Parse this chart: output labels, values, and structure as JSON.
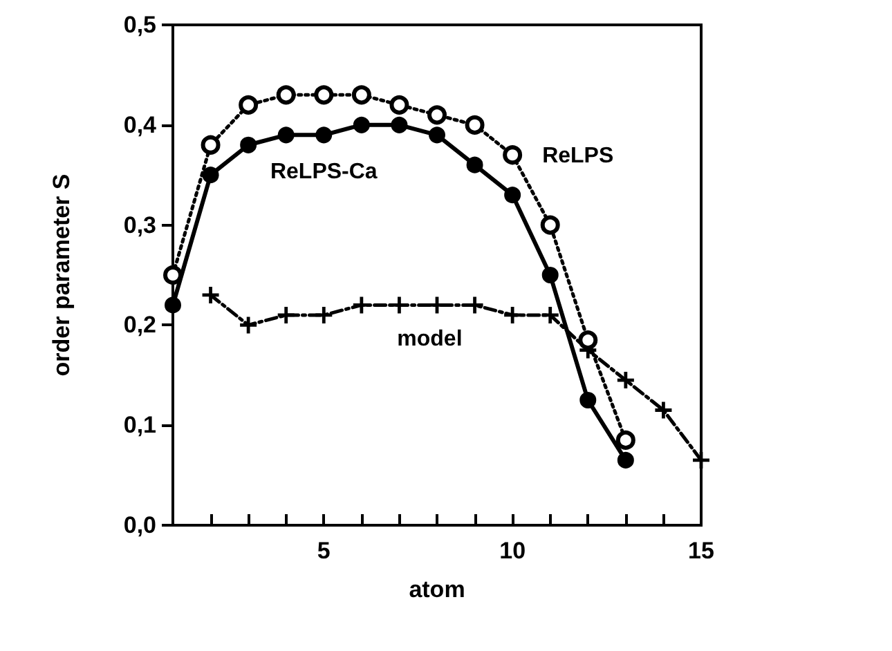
{
  "chart_data": {
    "type": "line",
    "xlabel": "atom",
    "ylabel": "order parameter S",
    "xlim": [
      1,
      15
    ],
    "ylim": [
      0,
      0.5
    ],
    "xticks": [
      {
        "value": 2,
        "label": null
      },
      {
        "value": 3,
        "label": null
      },
      {
        "value": 4,
        "label": null
      },
      5,
      {
        "value": 6,
        "label": null
      },
      {
        "value": 7,
        "label": null
      },
      {
        "value": 8,
        "label": null
      },
      {
        "value": 9,
        "label": null
      },
      10,
      {
        "value": 11,
        "label": null
      },
      {
        "value": 12,
        "label": null
      },
      {
        "value": 13,
        "label": null
      },
      {
        "value": 14,
        "label": null
      },
      15
    ],
    "yticks": [
      {
        "value": 0,
        "label": "0,0"
      },
      {
        "value": 0.1,
        "label": "0,1"
      },
      {
        "value": 0.2,
        "label": "0,2"
      },
      {
        "value": 0.3,
        "label": "0,3"
      },
      {
        "value": 0.4,
        "label": "0,4"
      },
      {
        "value": 0.5,
        "label": "0,5"
      }
    ],
    "grid": false,
    "legend": false,
    "series": [
      {
        "name": "ReLPS",
        "color": "#000000",
        "marker": "circle",
        "line_style": "dotted",
        "x": [
          1,
          2,
          3,
          4,
          5,
          6,
          7,
          8,
          9,
          10,
          11,
          12,
          13
        ],
        "values": [
          0.25,
          0.38,
          0.42,
          0.43,
          0.43,
          0.43,
          0.42,
          0.41,
          0.4,
          0.37,
          0.3,
          0.185,
          0.085
        ]
      },
      {
        "name": "ReLPS-Ca",
        "color": "#000000",
        "marker": "circle",
        "line_style": "solid",
        "x": [
          1,
          2,
          3,
          4,
          5,
          6,
          7,
          8,
          9,
          10,
          11,
          12,
          13
        ],
        "values": [
          0.22,
          0.35,
          0.38,
          0.39,
          0.39,
          0.4,
          0.4,
          0.39,
          0.36,
          0.33,
          0.25,
          0.125,
          0.065
        ]
      },
      {
        "name": "model",
        "color": "#000000",
        "marker": "cross",
        "line_style": "dashed",
        "x": [
          2,
          3,
          4,
          5,
          6,
          7,
          8,
          9,
          10,
          11,
          12,
          13,
          14,
          15
        ],
        "values": [
          0.23,
          0.2,
          0.21,
          0.21,
          0.22,
          0.22,
          0.22,
          0.22,
          0.21,
          0.21,
          0.175,
          0.145,
          0.115,
          0.065
        ]
      }
    ]
  }
}
